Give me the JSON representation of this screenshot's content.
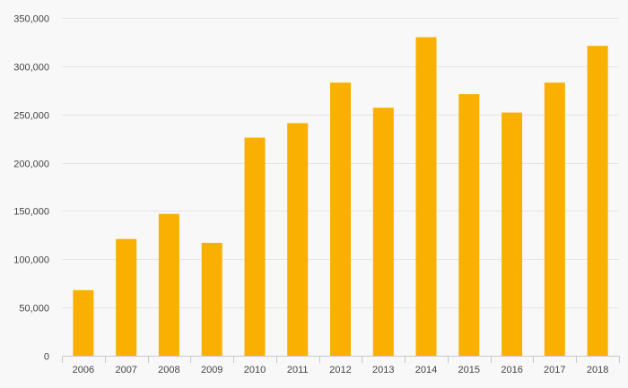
{
  "chart_data": {
    "type": "bar",
    "categories": [
      "2006",
      "2007",
      "2008",
      "2009",
      "2010",
      "2011",
      "2012",
      "2013",
      "2014",
      "2015",
      "2016",
      "2017",
      "2018"
    ],
    "values": [
      68000,
      121000,
      147000,
      117000,
      226000,
      241000,
      283000,
      257000,
      330000,
      271000,
      252000,
      283000,
      321000
    ],
    "title": "",
    "xlabel": "",
    "ylabel": "",
    "ylim": [
      0,
      350000
    ],
    "yticks": [
      0,
      50000,
      100000,
      150000,
      200000,
      250000,
      300000,
      350000
    ],
    "ytick_labels": [
      "0",
      "50,000",
      "100,000",
      "150,000",
      "200,000",
      "250,000",
      "300,000",
      "350,000"
    ],
    "grid": true,
    "legend": "none",
    "bar_color": "#f9b000"
  }
}
